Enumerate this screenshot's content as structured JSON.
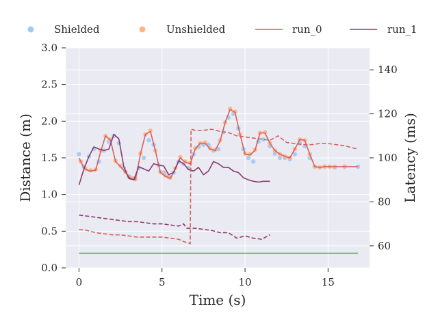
{
  "chart_data": {
    "type": "line",
    "xlabel": "Time (s)",
    "ylabel": "Distance (m)",
    "ylabel_right": "Latency (ms)",
    "xlim": [
      -0.8,
      17.5
    ],
    "ylim": [
      0.0,
      3.0
    ],
    "ylim_right": [
      50,
      150
    ],
    "x_ticks": [
      0,
      5,
      10,
      15
    ],
    "y_ticks": [
      0.0,
      0.5,
      1.0,
      1.5,
      2.0,
      2.5,
      3.0
    ],
    "y_ticks_right": [
      60,
      80,
      100,
      120,
      140
    ],
    "grid": true,
    "legend_position": "top",
    "legend": [
      "Shielded",
      "Unshielded",
      "run_0",
      "run_1"
    ],
    "colors": {
      "shielded": "#a1c9f4",
      "unshielded": "#ffb482",
      "run_0": "#d65f5f",
      "run_1": "#8c3a6e",
      "threshold": "#55a868",
      "background": "#eaeaf2"
    },
    "threshold": {
      "x": [
        0,
        16.8
      ],
      "y": [
        0.2,
        0.2
      ]
    },
    "distance_series": [
      {
        "name": "run_0",
        "x": [
          0,
          0.3,
          0.6,
          1.0,
          1.3,
          1.6,
          1.9,
          2.2,
          2.5,
          2.8,
          3.1,
          3.4,
          3.7,
          4.0,
          4.3,
          4.6,
          4.9,
          5.2,
          5.5,
          5.8,
          6.1,
          6.4,
          6.7,
          7.0,
          7.3,
          7.6,
          7.9,
          8.2,
          8.5,
          8.8,
          9.1,
          9.4,
          9.7,
          10.0,
          10.3,
          10.6,
          10.9,
          11.2,
          11.5,
          11.8,
          12.1,
          12.4,
          12.7,
          13.0,
          13.3,
          13.6,
          13.9,
          14.2,
          14.5,
          14.8,
          15.1,
          15.4,
          16.0,
          16.8
        ],
        "y": [
          1.5,
          1.36,
          1.32,
          1.33,
          1.58,
          1.8,
          1.74,
          1.45,
          1.38,
          1.3,
          1.22,
          1.2,
          1.55,
          1.82,
          1.86,
          1.6,
          1.3,
          1.25,
          1.22,
          1.35,
          1.5,
          1.44,
          1.42,
          1.62,
          1.7,
          1.7,
          1.62,
          1.6,
          1.73,
          1.98,
          2.16,
          2.12,
          1.82,
          1.55,
          1.54,
          1.6,
          1.84,
          1.84,
          1.7,
          1.6,
          1.55,
          1.52,
          1.5,
          1.62,
          1.75,
          1.74,
          1.55,
          1.38,
          1.37,
          1.38,
          1.38,
          1.38,
          1.38,
          1.38
        ]
      },
      {
        "name": "run_1",
        "x": [
          0,
          0.3,
          0.6,
          0.9,
          1.2,
          1.5,
          1.8,
          2.1,
          2.4,
          2.7,
          3.0,
          3.3,
          3.6,
          3.9,
          4.2,
          4.5,
          4.8,
          5.1,
          5.4,
          5.7,
          6.0,
          6.3,
          6.6,
          6.9,
          7.2,
          7.5,
          7.8,
          8.1,
          8.4,
          8.7,
          9.0,
          9.3,
          9.6,
          9.9,
          10.2,
          10.5,
          10.8,
          11.1,
          11.5
        ],
        "y": [
          1.13,
          1.35,
          1.52,
          1.65,
          1.62,
          1.6,
          1.62,
          1.82,
          1.76,
          1.38,
          1.22,
          1.2,
          1.38,
          1.35,
          1.32,
          1.42,
          1.4,
          1.39,
          1.27,
          1.3,
          1.46,
          1.42,
          1.34,
          1.32,
          1.37,
          1.27,
          1.32,
          1.45,
          1.42,
          1.37,
          1.37,
          1.32,
          1.3,
          1.23,
          1.2,
          1.18,
          1.17,
          1.18,
          1.18
        ]
      }
    ],
    "latency_series": [
      {
        "name": "run_0",
        "x": [
          0,
          0.5,
          1.0,
          1.5,
          2.0,
          2.5,
          3.0,
          3.5,
          4.0,
          4.5,
          5.0,
          5.5,
          6.0,
          6.3,
          6.5,
          6.7,
          6.75,
          7.0,
          7.5,
          8.0,
          8.5,
          9.0,
          9.5,
          10.0,
          10.5,
          11.0,
          11.5,
          12.0,
          12.5,
          13.0,
          13.5,
          14.0,
          14.5,
          15.0,
          15.5,
          16.0,
          16.5,
          16.8
        ],
        "y": [
          67.5,
          67,
          66,
          65.5,
          65,
          65,
          64.5,
          64,
          64,
          64,
          64,
          63.5,
          63,
          62,
          61.5,
          61,
          113,
          112.5,
          112.5,
          113,
          112,
          111.5,
          110,
          109.5,
          109,
          108.5,
          108,
          110,
          107,
          106.5,
          106,
          106,
          106.5,
          106.5,
          106,
          105.5,
          104.5,
          104
        ]
      },
      {
        "name": "run_1",
        "x": [
          0,
          0.5,
          1.0,
          1.5,
          2.0,
          2.5,
          3.0,
          3.5,
          4.0,
          4.5,
          5.0,
          5.5,
          6.0,
          6.3,
          6.5,
          7.0,
          7.5,
          8.0,
          8.5,
          9.0,
          9.5,
          10.0,
          10.5,
          11.0,
          11.5
        ],
        "y": [
          74,
          73.5,
          73,
          72.5,
          72,
          71.5,
          71,
          71,
          70.5,
          70,
          70,
          69.5,
          69,
          70,
          68,
          68,
          67.5,
          67,
          66,
          66,
          63.5,
          64.5,
          63.5,
          63,
          65
        ]
      }
    ],
    "scatter": {
      "shielded": {
        "name": "Shielded",
        "x": [
          0,
          0.3,
          0.6,
          0.9,
          1.2,
          1.5,
          1.8,
          2.1,
          2.4,
          2.7,
          3.0,
          3.3,
          3.6,
          3.9,
          4.2,
          4.5,
          4.8,
          5.1,
          5.4,
          5.7,
          6.0,
          6.3,
          6.6,
          6.9,
          7.2,
          7.5,
          7.8,
          8.1,
          8.4,
          8.7,
          9.0,
          9.3,
          9.6,
          9.9,
          10.2,
          10.5,
          10.8,
          11.1,
          11.5,
          11.8,
          12.1,
          12.4,
          12.7,
          13.0,
          13.3,
          13.6,
          13.9,
          14.2,
          14.5,
          14.8,
          15.1,
          15.4,
          16.0,
          16.8
        ],
        "y": [
          1.55,
          1.38,
          1.52,
          1.62,
          1.45,
          1.6,
          1.72,
          1.8,
          1.7,
          1.36,
          1.25,
          1.22,
          1.36,
          1.5,
          1.74,
          1.68,
          1.4,
          1.3,
          1.24,
          1.3,
          1.45,
          1.42,
          1.36,
          1.55,
          1.65,
          1.68,
          1.68,
          1.6,
          1.62,
          1.85,
          2.05,
          2.1,
          1.9,
          1.62,
          1.5,
          1.45,
          1.72,
          1.75,
          1.66,
          1.56,
          1.5,
          1.5,
          1.48,
          1.55,
          1.7,
          1.66,
          1.5,
          1.38,
          1.37,
          1.38,
          1.38,
          1.37,
          1.38,
          1.38
        ]
      },
      "unshielded": {
        "name": "Unshielded",
        "x": [
          0.1,
          0.4,
          0.7,
          1.0,
          1.3,
          1.6,
          1.9,
          2.2,
          2.5,
          2.8,
          3.1,
          3.4,
          3.7,
          4.0,
          4.3,
          4.6,
          4.9,
          5.2,
          5.5,
          5.8,
          6.1,
          6.4,
          6.7,
          7.0,
          7.3,
          7.6,
          7.9,
          8.2,
          8.5,
          8.8,
          9.1,
          9.4,
          9.7,
          10.0,
          10.3,
          10.6,
          10.9,
          11.2,
          11.5,
          11.8,
          12.1,
          12.4,
          12.7,
          13.0,
          13.3,
          13.6,
          13.9,
          14.2,
          14.5,
          14.8,
          15.1,
          15.4,
          16.0
        ],
        "y": [
          1.45,
          1.35,
          1.33,
          1.34,
          1.6,
          1.8,
          1.75,
          1.46,
          1.39,
          1.31,
          1.23,
          1.21,
          1.56,
          1.82,
          1.87,
          1.6,
          1.31,
          1.26,
          1.23,
          1.36,
          1.51,
          1.45,
          1.43,
          1.63,
          1.7,
          1.71,
          1.63,
          1.61,
          1.74,
          1.98,
          2.17,
          2.13,
          1.82,
          1.56,
          1.55,
          1.61,
          1.84,
          1.85,
          1.7,
          1.6,
          1.55,
          1.52,
          1.5,
          1.62,
          1.75,
          1.74,
          1.55,
          1.38,
          1.37,
          1.38,
          1.38,
          1.38,
          1.38
        ]
      }
    }
  }
}
